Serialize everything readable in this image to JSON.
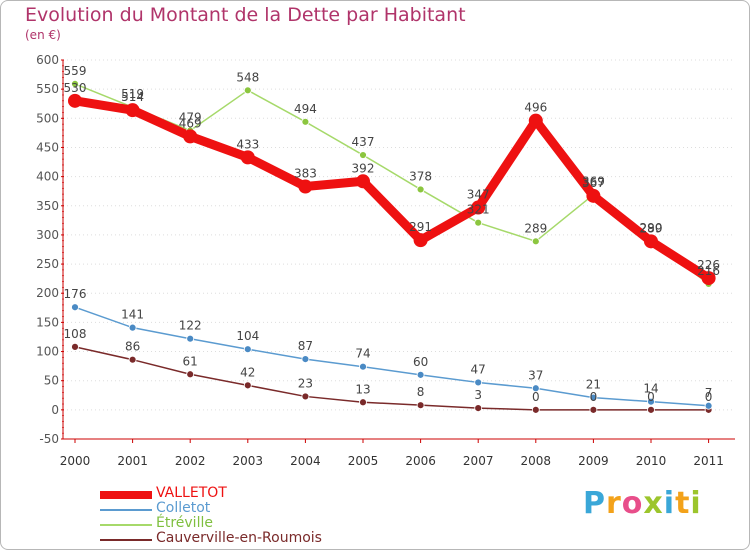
{
  "header": {
    "title": "Evolution du Montant de la Dette par Habitant",
    "subtitle": "(en €)"
  },
  "logo": {
    "text": [
      "P",
      "r",
      "o",
      "x",
      "i",
      "t",
      "i"
    ],
    "colors": [
      "#3aa7d8",
      "#f3a21a",
      "#e84e8a",
      "#9cc52c",
      "#3aa7d8",
      "#f3a21a",
      "#9cc52c"
    ]
  },
  "chart_data": {
    "type": "line",
    "title": "Evolution du Montant de la Dette par Habitant",
    "ylabel": "(en €)",
    "xlabel": "",
    "ylim": [
      -50,
      600
    ],
    "ytick_step": 50,
    "categories": [
      "2000",
      "2001",
      "2002",
      "2003",
      "2004",
      "2005",
      "2006",
      "2007",
      "2008",
      "2009",
      "2010",
      "2011"
    ],
    "series": [
      {
        "name": "Cauverville-en-Roumois",
        "color": "#7a2a2a",
        "width": 1.5,
        "point_r": 3.5,
        "point_fill": "#7a2a2a",
        "values": [
          108,
          86,
          61,
          42,
          23,
          13,
          8,
          3,
          0,
          0,
          0,
          0
        ]
      },
      {
        "name": "Colletot",
        "color": "#5b9bd0",
        "width": 1.5,
        "point_r": 3.5,
        "point_fill": "#4a8ac4",
        "values": [
          176,
          141,
          122,
          104,
          87,
          74,
          60,
          47,
          37,
          21,
          14,
          7
        ]
      },
      {
        "name": "Étréville",
        "color": "#a6d96a",
        "width": 1.5,
        "point_r": 3.5,
        "point_fill": "#8cc63f",
        "values": [
          559,
          519,
          479,
          548,
          494,
          437,
          378,
          321,
          289,
          369,
          290,
          216
        ]
      },
      {
        "name": "VALLETOT",
        "color": "#ee1111",
        "width": 9,
        "point_r": 7,
        "point_fill": "#ee1111",
        "values": [
          530,
          514,
          469,
          433,
          383,
          392,
          291,
          347,
          496,
          367,
          289,
          226
        ]
      }
    ],
    "legend_order": [
      "VALLETOT",
      "Colletot",
      "Étréville",
      "Cauverville-en-Roumois"
    ]
  }
}
